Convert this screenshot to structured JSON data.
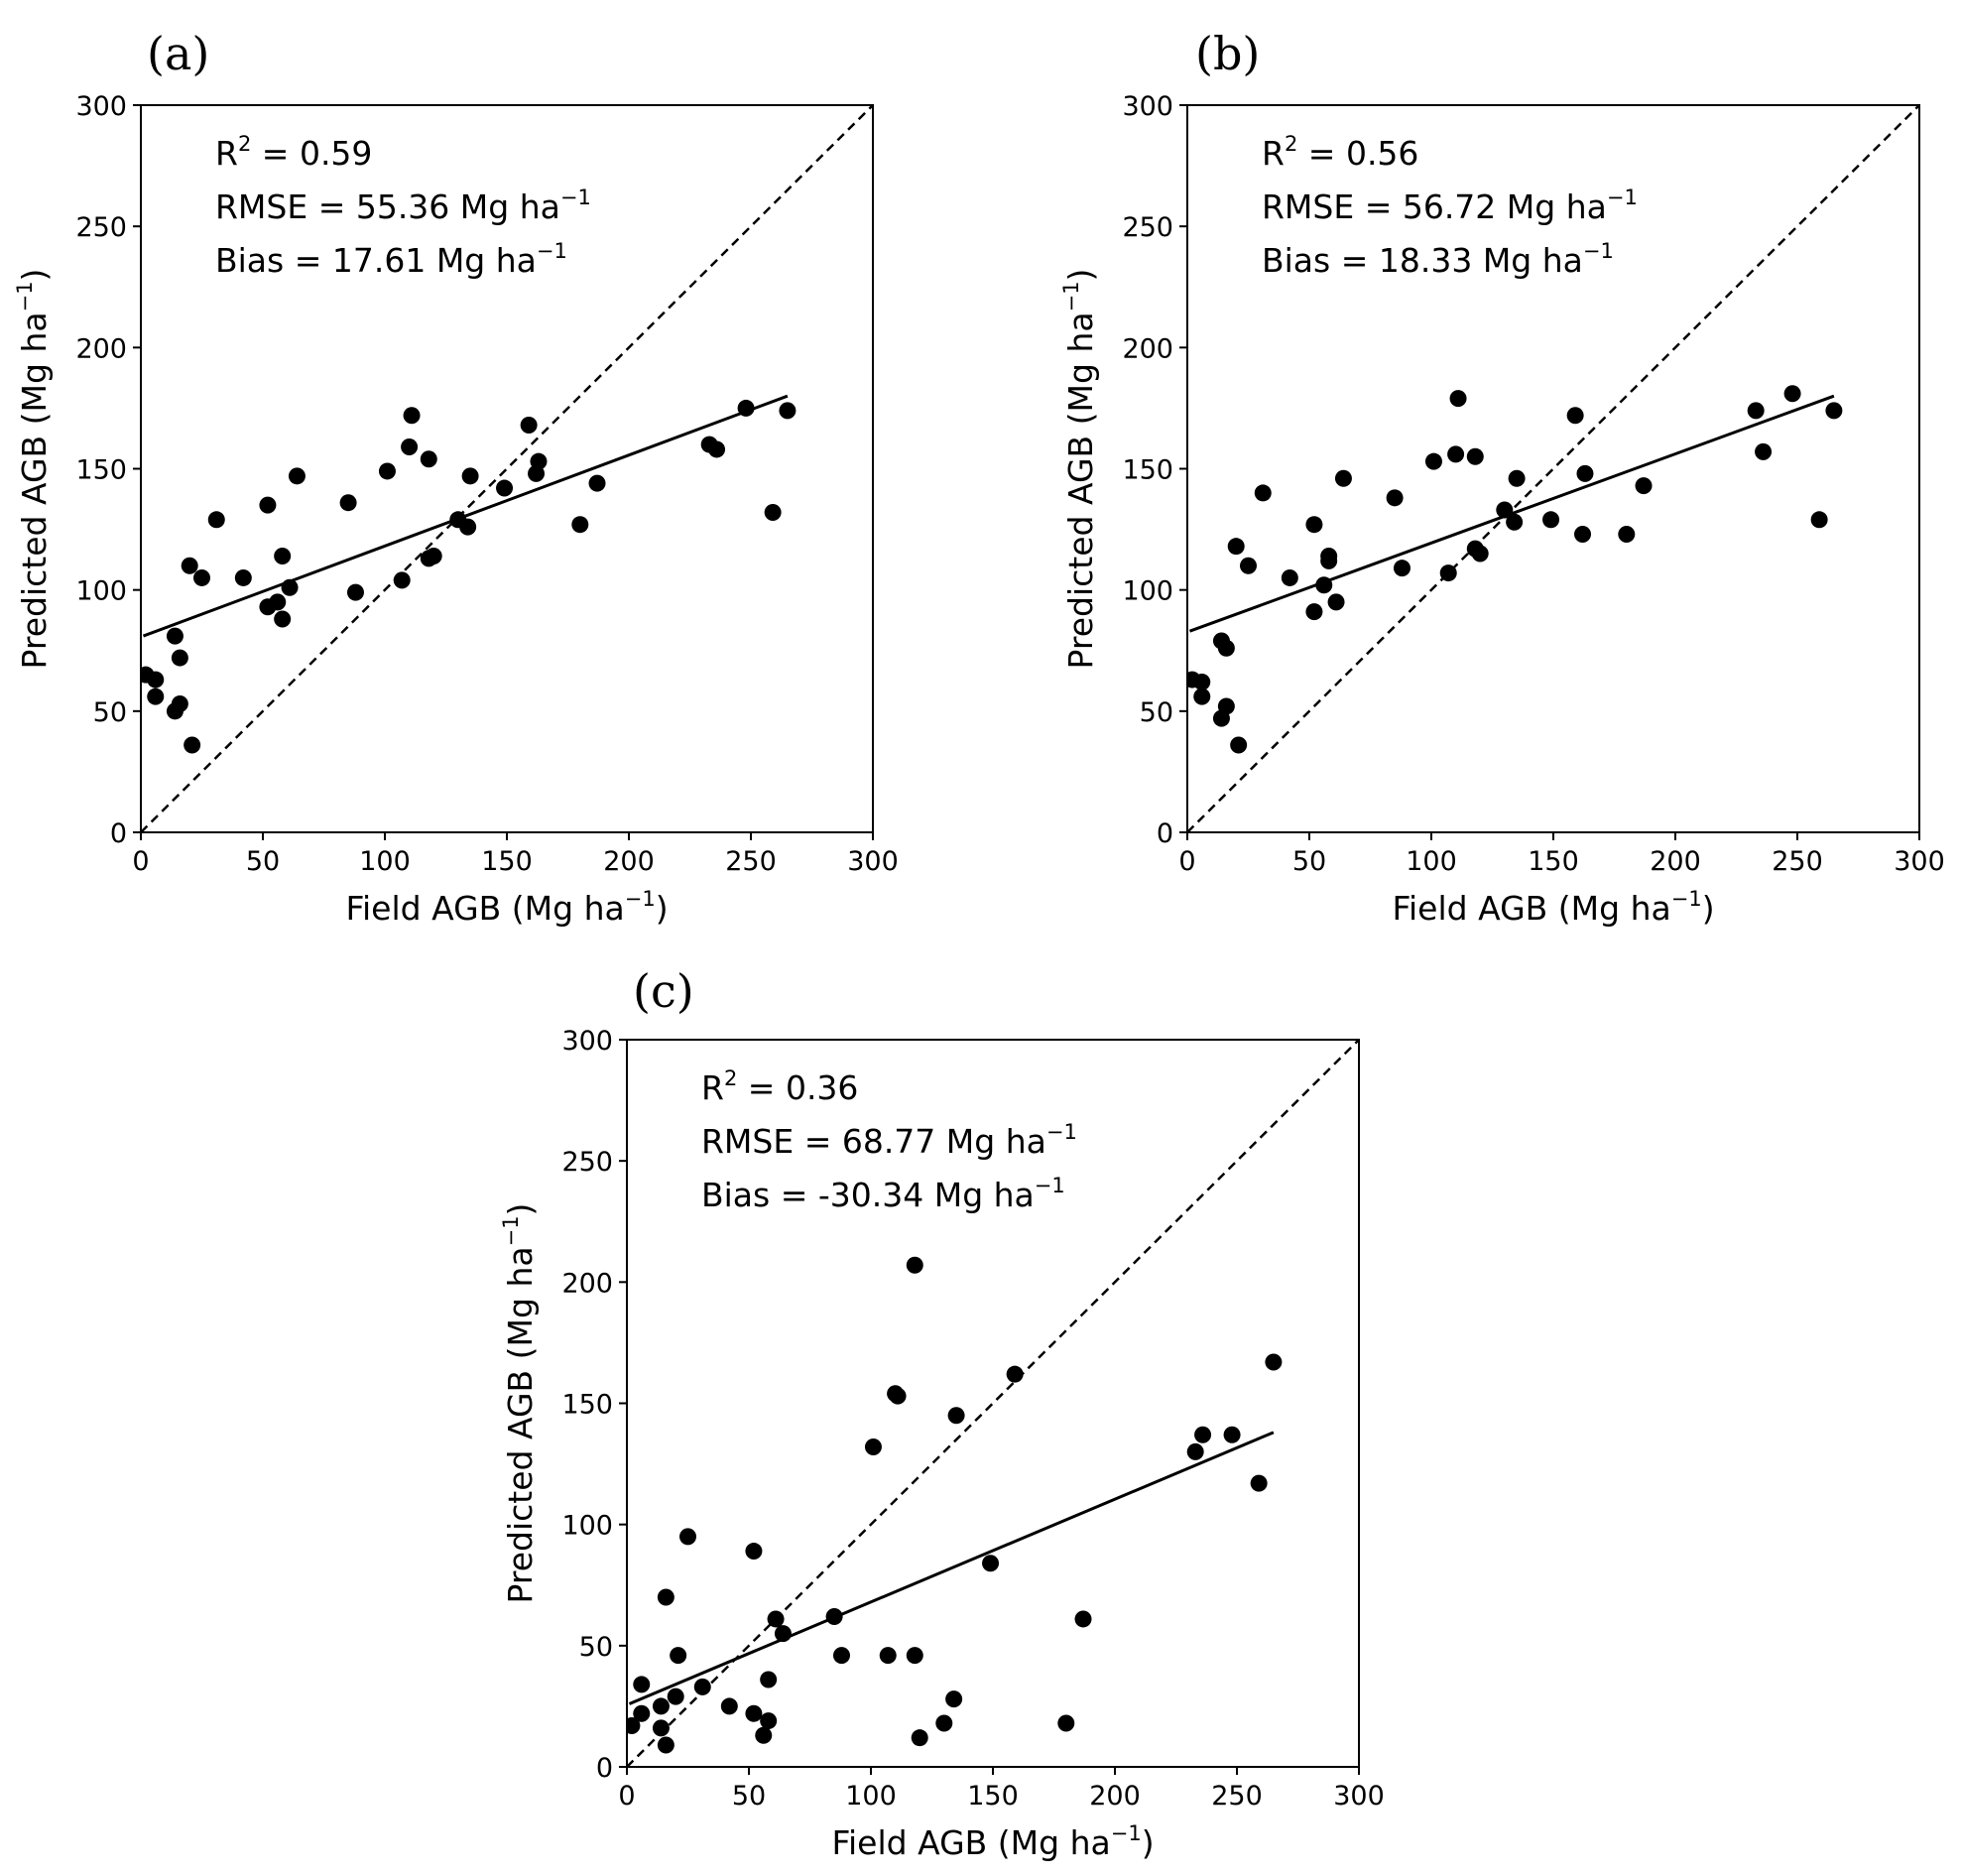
{
  "figure": {
    "description": "Predicted vs field AGB scatter plots"
  },
  "chart_data": [
    {
      "type": "scatter",
      "panel": "(a)",
      "xlabel": "Field AGB (Mg ha",
      "ylabel": "Predicted AGB (Mg ha",
      "unit_exp": "−1",
      "xlim": [
        0,
        300
      ],
      "ylim": [
        0,
        300
      ],
      "xticks": [
        0,
        50,
        100,
        150,
        200,
        250,
        300
      ],
      "yticks": [
        0,
        50,
        100,
        150,
        200,
        250,
        300
      ],
      "stats": {
        "r2_prefix": "R",
        "r2_sup": "2",
        "r2_value": " = 0.59",
        "rmse_text": "RMSE = 55.36 Mg ha",
        "rmse_sup": "−1",
        "bias_text": "Bias = 17.61 Mg ha",
        "bias_sup": "−1"
      },
      "one_to_one": [
        [
          0,
          0
        ],
        [
          300,
          300
        ]
      ],
      "fit_line": [
        [
          1,
          81
        ],
        [
          265,
          180
        ]
      ],
      "points": [
        [
          2,
          65
        ],
        [
          6,
          63
        ],
        [
          6,
          56
        ],
        [
          14,
          81
        ],
        [
          14,
          50
        ],
        [
          16,
          72
        ],
        [
          16,
          53
        ],
        [
          20,
          110
        ],
        [
          21,
          36
        ],
        [
          25,
          105
        ],
        [
          31,
          129
        ],
        [
          42,
          105
        ],
        [
          52,
          135
        ],
        [
          52,
          93
        ],
        [
          56,
          95
        ],
        [
          58,
          114
        ],
        [
          58,
          88
        ],
        [
          61,
          101
        ],
        [
          64,
          147
        ],
        [
          85,
          136
        ],
        [
          88,
          99
        ],
        [
          101,
          149
        ],
        [
          107,
          104
        ],
        [
          110,
          159
        ],
        [
          111,
          172
        ],
        [
          118,
          154
        ],
        [
          118,
          113
        ],
        [
          120,
          114
        ],
        [
          130,
          129
        ],
        [
          134,
          126
        ],
        [
          135,
          147
        ],
        [
          149,
          142
        ],
        [
          159,
          168
        ],
        [
          162,
          148
        ],
        [
          163,
          153
        ],
        [
          180,
          127
        ],
        [
          187,
          144
        ],
        [
          233,
          160
        ],
        [
          236,
          158
        ],
        [
          248,
          175
        ],
        [
          259,
          132
        ],
        [
          265,
          174
        ]
      ]
    },
    {
      "type": "scatter",
      "panel": "(b)",
      "xlabel": "Field AGB (Mg ha",
      "ylabel": "Predicted AGB (Mg ha",
      "unit_exp": "−1",
      "xlim": [
        0,
        300
      ],
      "ylim": [
        0,
        300
      ],
      "xticks": [
        0,
        50,
        100,
        150,
        200,
        250,
        300
      ],
      "yticks": [
        0,
        50,
        100,
        150,
        200,
        250,
        300
      ],
      "stats": {
        "r2_prefix": "R",
        "r2_sup": "2",
        "r2_value": " = 0.56",
        "rmse_text": "RMSE = 56.72 Mg ha",
        "rmse_sup": "−1",
        "bias_text": "Bias = 18.33 Mg ha",
        "bias_sup": "−1"
      },
      "one_to_one": [
        [
          0,
          0
        ],
        [
          300,
          300
        ]
      ],
      "fit_line": [
        [
          1,
          83
        ],
        [
          265,
          180
        ]
      ],
      "points": [
        [
          2,
          63
        ],
        [
          6,
          62
        ],
        [
          6,
          56
        ],
        [
          14,
          79
        ],
        [
          14,
          47
        ],
        [
          16,
          76
        ],
        [
          16,
          52
        ],
        [
          20,
          118
        ],
        [
          21,
          36
        ],
        [
          25,
          110
        ],
        [
          31,
          140
        ],
        [
          42,
          105
        ],
        [
          52,
          127
        ],
        [
          52,
          91
        ],
        [
          56,
          102
        ],
        [
          58,
          114
        ],
        [
          58,
          112
        ],
        [
          61,
          95
        ],
        [
          64,
          146
        ],
        [
          85,
          138
        ],
        [
          88,
          109
        ],
        [
          101,
          153
        ],
        [
          107,
          107
        ],
        [
          110,
          156
        ],
        [
          111,
          179
        ],
        [
          118,
          155
        ],
        [
          118,
          117
        ],
        [
          120,
          115
        ],
        [
          130,
          133
        ],
        [
          134,
          128
        ],
        [
          135,
          146
        ],
        [
          149,
          129
        ],
        [
          159,
          172
        ],
        [
          162,
          123
        ],
        [
          163,
          148
        ],
        [
          180,
          123
        ],
        [
          187,
          143
        ],
        [
          233,
          174
        ],
        [
          236,
          157
        ],
        [
          248,
          181
        ],
        [
          259,
          129
        ],
        [
          265,
          174
        ]
      ]
    },
    {
      "type": "scatter",
      "panel": "(c)",
      "xlabel": "Field AGB (Mg ha",
      "ylabel": "Predicted AGB (Mg ha",
      "unit_exp": "−1",
      "xlim": [
        0,
        300
      ],
      "ylim": [
        0,
        300
      ],
      "xticks": [
        0,
        50,
        100,
        150,
        200,
        250,
        300
      ],
      "yticks": [
        0,
        50,
        100,
        150,
        200,
        250,
        300
      ],
      "stats": {
        "r2_prefix": "R",
        "r2_sup": "2",
        "r2_value": " = 0.36",
        "rmse_text": "RMSE = 68.77 Mg ha",
        "rmse_sup": "−1",
        "bias_text": "Bias = -30.34 Mg ha",
        "bias_sup": "−1"
      },
      "one_to_one": [
        [
          0,
          0
        ],
        [
          300,
          300
        ]
      ],
      "fit_line": [
        [
          1,
          26
        ],
        [
          265,
          138
        ]
      ],
      "points": [
        [
          2,
          17
        ],
        [
          6,
          34
        ],
        [
          6,
          22
        ],
        [
          14,
          25
        ],
        [
          14,
          16
        ],
        [
          16,
          70
        ],
        [
          16,
          9
        ],
        [
          20,
          29
        ],
        [
          21,
          46
        ],
        [
          25,
          95
        ],
        [
          31,
          33
        ],
        [
          42,
          25
        ],
        [
          52,
          89
        ],
        [
          52,
          22
        ],
        [
          56,
          13
        ],
        [
          58,
          19
        ],
        [
          58,
          36
        ],
        [
          61,
          61
        ],
        [
          64,
          55
        ],
        [
          85,
          62
        ],
        [
          88,
          46
        ],
        [
          101,
          132
        ],
        [
          107,
          46
        ],
        [
          110,
          154
        ],
        [
          111,
          153
        ],
        [
          118,
          46
        ],
        [
          118,
          207
        ],
        [
          120,
          12
        ],
        [
          130,
          18
        ],
        [
          134,
          28
        ],
        [
          135,
          145
        ],
        [
          149,
          84
        ],
        [
          159,
          162
        ],
        [
          180,
          18
        ],
        [
          187,
          61
        ],
        [
          233,
          130
        ],
        [
          236,
          137
        ],
        [
          248,
          137
        ],
        [
          259,
          117
        ],
        [
          265,
          167
        ]
      ]
    }
  ]
}
